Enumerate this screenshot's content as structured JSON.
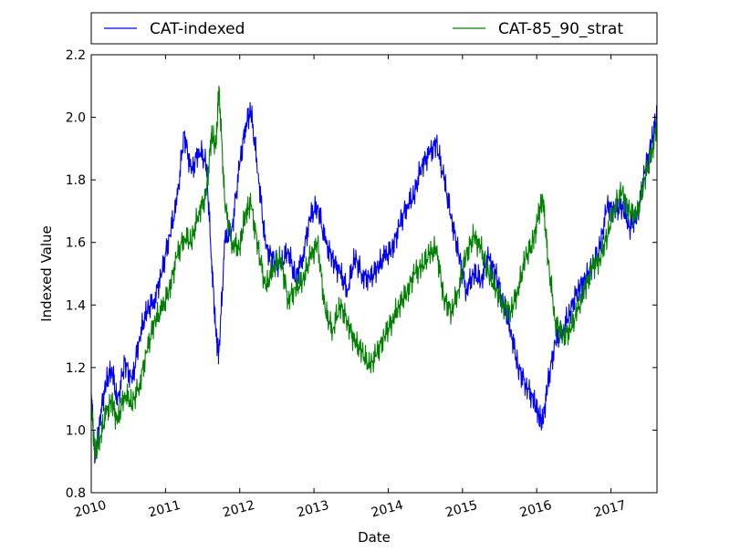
{
  "chart_data": {
    "type": "line",
    "title": "",
    "xlabel": "Date",
    "ylabel": "Indexed Value",
    "xlim": [
      2010.0,
      2017.62
    ],
    "ylim": [
      0.8,
      2.2
    ],
    "x_ticks": [
      2010,
      2011,
      2012,
      2013,
      2014,
      2015,
      2016,
      2017
    ],
    "x_tick_labels": [
      "2010",
      "2011",
      "2012",
      "2013",
      "2014",
      "2015",
      "2016",
      "2017"
    ],
    "y_ticks": [
      0.8,
      1.0,
      1.2,
      1.4,
      1.6,
      1.8,
      2.0,
      2.2
    ],
    "y_tick_labels": [
      "0.8",
      "1.0",
      "1.2",
      "1.4",
      "1.6",
      "1.8",
      "2.0",
      "2.2"
    ],
    "grid": false,
    "legend_position": "top, outside plot area",
    "x": [
      2010.0,
      2010.05,
      2010.12,
      2010.2,
      2010.28,
      2010.35,
      2010.45,
      2010.55,
      2010.65,
      2010.75,
      2010.85,
      2010.95,
      2011.05,
      2011.15,
      2011.25,
      2011.35,
      2011.45,
      2011.55,
      2011.62,
      2011.68,
      2011.72,
      2011.8,
      2011.9,
      2012.0,
      2012.08,
      2012.15,
      2012.25,
      2012.35,
      2012.45,
      2012.55,
      2012.65,
      2012.75,
      2012.85,
      2012.95,
      2013.05,
      2013.15,
      2013.25,
      2013.35,
      2013.45,
      2013.55,
      2013.65,
      2013.75,
      2013.85,
      2013.95,
      2014.05,
      2014.15,
      2014.25,
      2014.35,
      2014.45,
      2014.55,
      2014.65,
      2014.75,
      2014.85,
      2014.95,
      2015.05,
      2015.15,
      2015.25,
      2015.35,
      2015.45,
      2015.55,
      2015.65,
      2015.75,
      2015.85,
      2015.95,
      2016.02,
      2016.08,
      2016.15,
      2016.25,
      2016.35,
      2016.45,
      2016.55,
      2016.65,
      2016.75,
      2016.85,
      2016.95,
      2017.05,
      2017.15,
      2017.25,
      2017.35,
      2017.45,
      2017.55,
      2017.62
    ],
    "series": [
      {
        "name": "CAT-indexed",
        "color": "#0000ff",
        "values": [
          1.12,
          0.9,
          1.05,
          1.15,
          1.2,
          1.08,
          1.22,
          1.15,
          1.3,
          1.38,
          1.42,
          1.5,
          1.62,
          1.72,
          1.95,
          1.82,
          1.9,
          1.85,
          1.55,
          1.3,
          1.25,
          1.6,
          1.65,
          1.85,
          1.98,
          2.02,
          1.82,
          1.58,
          1.55,
          1.52,
          1.58,
          1.48,
          1.56,
          1.68,
          1.72,
          1.6,
          1.55,
          1.5,
          1.45,
          1.55,
          1.5,
          1.48,
          1.52,
          1.55,
          1.58,
          1.65,
          1.72,
          1.75,
          1.85,
          1.88,
          1.92,
          1.8,
          1.68,
          1.56,
          1.45,
          1.5,
          1.48,
          1.55,
          1.5,
          1.4,
          1.32,
          1.2,
          1.15,
          1.1,
          1.05,
          1.02,
          1.15,
          1.28,
          1.32,
          1.38,
          1.45,
          1.48,
          1.52,
          1.58,
          1.72,
          1.7,
          1.72,
          1.65,
          1.68,
          1.82,
          1.92,
          2.01
        ]
      },
      {
        "name": "CAT-85_90_strat",
        "color": "#008000",
        "values": [
          1.1,
          0.92,
          0.98,
          1.05,
          1.1,
          1.02,
          1.12,
          1.08,
          1.15,
          1.25,
          1.35,
          1.38,
          1.45,
          1.55,
          1.62,
          1.6,
          1.7,
          1.75,
          1.95,
          1.9,
          2.1,
          1.72,
          1.6,
          1.58,
          1.7,
          1.72,
          1.58,
          1.45,
          1.52,
          1.55,
          1.42,
          1.45,
          1.48,
          1.55,
          1.6,
          1.38,
          1.32,
          1.4,
          1.35,
          1.28,
          1.25,
          1.2,
          1.25,
          1.3,
          1.35,
          1.4,
          1.44,
          1.5,
          1.52,
          1.56,
          1.58,
          1.42,
          1.38,
          1.45,
          1.56,
          1.62,
          1.58,
          1.5,
          1.45,
          1.4,
          1.38,
          1.45,
          1.55,
          1.6,
          1.68,
          1.75,
          1.55,
          1.35,
          1.3,
          1.32,
          1.38,
          1.45,
          1.52,
          1.55,
          1.62,
          1.72,
          1.76,
          1.7,
          1.68,
          1.8,
          1.88,
          1.99
        ]
      }
    ]
  }
}
